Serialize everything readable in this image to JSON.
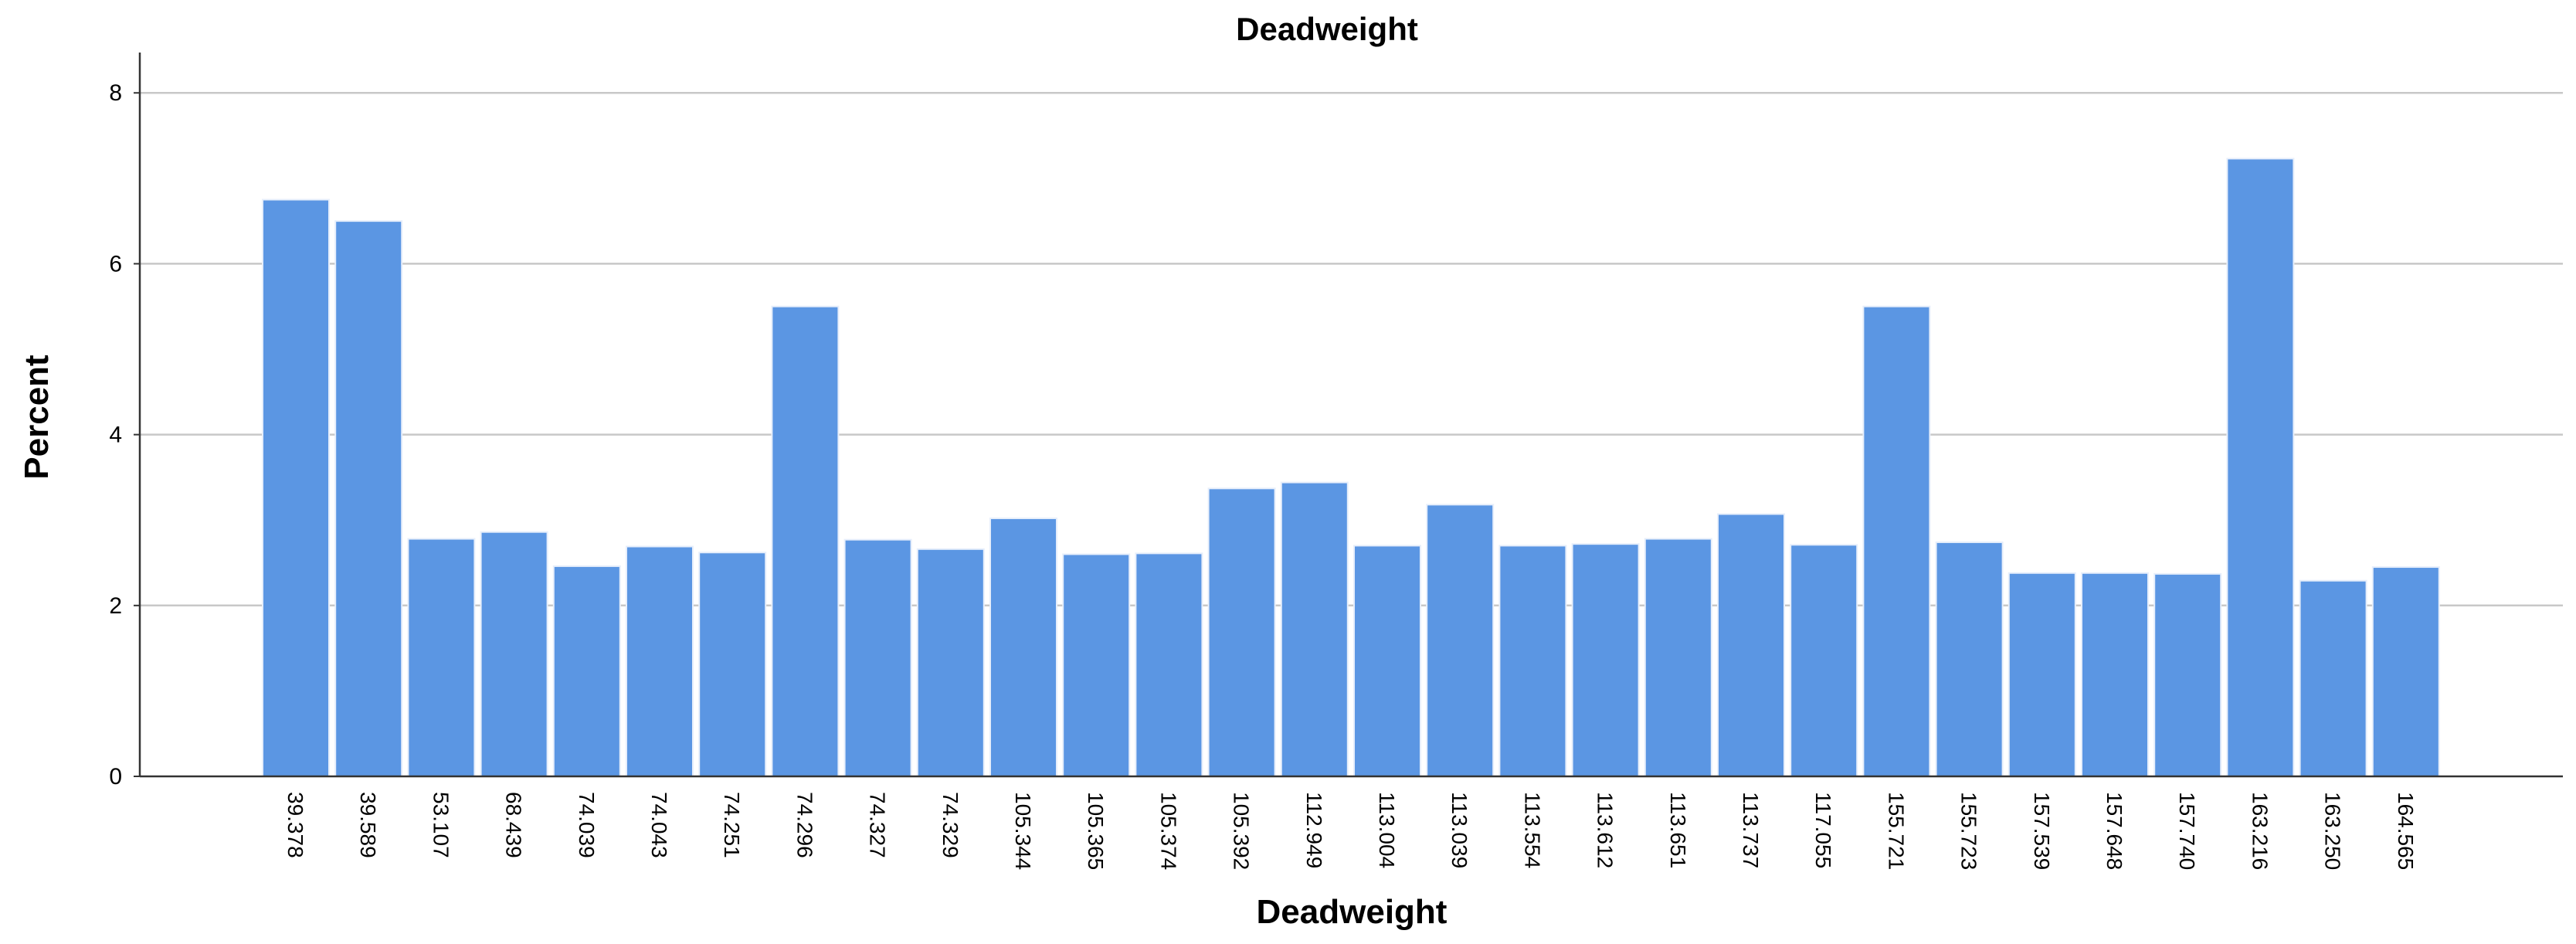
{
  "chart_data": {
    "type": "bar",
    "title": "Deadweight",
    "xlabel": "Deadweight",
    "ylabel": "Percent",
    "ylim": [
      0,
      8.4
    ],
    "yticks": [
      "0",
      "2",
      "4",
      "6",
      "8"
    ],
    "grid": "horizontal",
    "bar_color": "#5b96e3",
    "categories": [
      "39.378",
      "39.589",
      "53.107",
      "68.439",
      "74.039",
      "74.043",
      "74.251",
      "74.296",
      "74.327",
      "74.329",
      "105.344",
      "105.365",
      "105.374",
      "105.392",
      "112.949",
      "113.004",
      "113.039",
      "113.554",
      "113.612",
      "113.651",
      "113.737",
      "117.055",
      "155.721",
      "155.723",
      "157.539",
      "157.648",
      "157.740",
      "163.216",
      "163.250",
      "164.565"
    ],
    "values": [
      6.75,
      6.5,
      2.78,
      2.86,
      2.46,
      2.69,
      2.62,
      5.5,
      2.77,
      2.66,
      3.02,
      2.6,
      2.61,
      3.37,
      3.44,
      2.7,
      3.18,
      2.7,
      2.72,
      2.78,
      3.07,
      2.71,
      5.5,
      2.74,
      2.38,
      2.38,
      2.37,
      7.23,
      2.29,
      2.45
    ]
  }
}
